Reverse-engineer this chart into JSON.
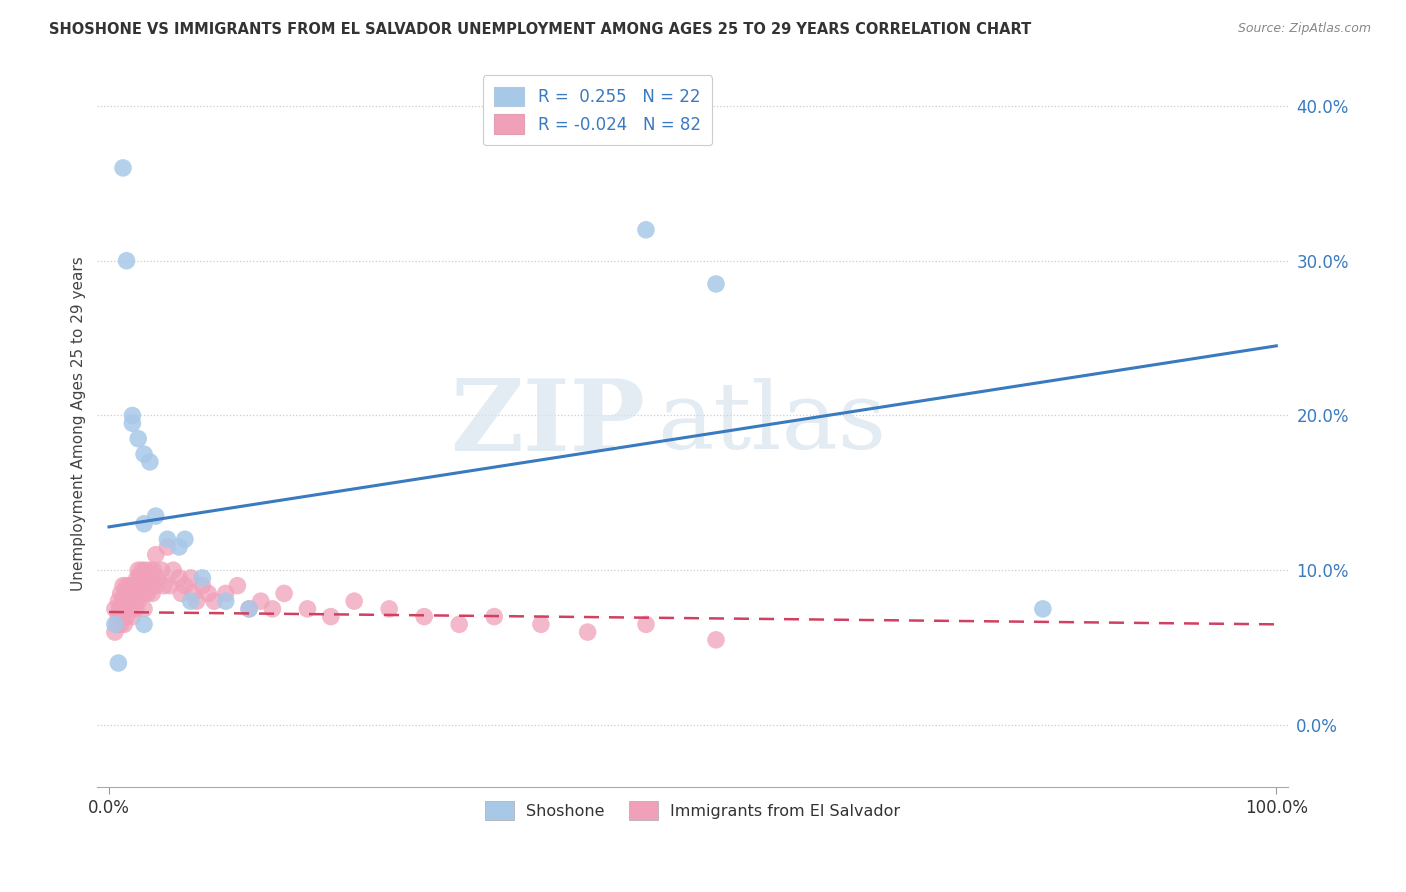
{
  "title": "SHOSHONE VS IMMIGRANTS FROM EL SALVADOR UNEMPLOYMENT AMONG AGES 25 TO 29 YEARS CORRELATION CHART",
  "source": "Source: ZipAtlas.com",
  "ylabel": "Unemployment Among Ages 25 to 29 years",
  "ytick_labels": [
    "0.0%",
    "10.0%",
    "20.0%",
    "30.0%",
    "40.0%"
  ],
  "ytick_values": [
    0.0,
    0.1,
    0.2,
    0.3,
    0.4
  ],
  "xlim": [
    -0.01,
    1.01
  ],
  "ylim": [
    -0.04,
    0.43
  ],
  "color_shoshone": "#a8c8e8",
  "color_salvador": "#f0a0b8",
  "color_line_shoshone": "#3a7abf",
  "color_line_salvador": "#d04060",
  "watermark_zip": "ZIP",
  "watermark_atlas": "atlas",
  "shoshone_x": [
    0.005,
    0.008,
    0.012,
    0.015,
    0.02,
    0.02,
    0.025,
    0.03,
    0.03,
    0.035,
    0.04,
    0.05,
    0.06,
    0.065,
    0.07,
    0.08,
    0.1,
    0.12,
    0.46,
    0.52,
    0.8,
    0.03
  ],
  "shoshone_y": [
    0.065,
    0.04,
    0.36,
    0.3,
    0.2,
    0.195,
    0.185,
    0.175,
    0.13,
    0.17,
    0.135,
    0.12,
    0.115,
    0.12,
    0.08,
    0.095,
    0.08,
    0.075,
    0.32,
    0.285,
    0.075,
    0.065
  ],
  "salvador_x": [
    0.005,
    0.005,
    0.007,
    0.008,
    0.008,
    0.009,
    0.01,
    0.01,
    0.01,
    0.012,
    0.012,
    0.013,
    0.013,
    0.014,
    0.015,
    0.015,
    0.015,
    0.016,
    0.017,
    0.018,
    0.018,
    0.019,
    0.02,
    0.02,
    0.02,
    0.021,
    0.022,
    0.023,
    0.023,
    0.024,
    0.025,
    0.025,
    0.025,
    0.026,
    0.027,
    0.028,
    0.028,
    0.03,
    0.03,
    0.03,
    0.031,
    0.032,
    0.033,
    0.035,
    0.035,
    0.036,
    0.037,
    0.038,
    0.04,
    0.04,
    0.042,
    0.045,
    0.047,
    0.05,
    0.052,
    0.055,
    0.06,
    0.062,
    0.065,
    0.07,
    0.072,
    0.075,
    0.08,
    0.085,
    0.09,
    0.1,
    0.11,
    0.12,
    0.13,
    0.14,
    0.15,
    0.17,
    0.19,
    0.21,
    0.24,
    0.27,
    0.3,
    0.33,
    0.37,
    0.41,
    0.46,
    0.52
  ],
  "salvador_y": [
    0.075,
    0.06,
    0.065,
    0.08,
    0.07,
    0.075,
    0.085,
    0.07,
    0.065,
    0.09,
    0.08,
    0.075,
    0.065,
    0.085,
    0.09,
    0.08,
    0.07,
    0.08,
    0.085,
    0.09,
    0.075,
    0.08,
    0.09,
    0.08,
    0.07,
    0.085,
    0.09,
    0.085,
    0.075,
    0.095,
    0.1,
    0.09,
    0.08,
    0.095,
    0.085,
    0.1,
    0.09,
    0.095,
    0.085,
    0.075,
    0.1,
    0.09,
    0.085,
    0.1,
    0.09,
    0.095,
    0.085,
    0.1,
    0.11,
    0.09,
    0.095,
    0.1,
    0.09,
    0.115,
    0.09,
    0.1,
    0.095,
    0.085,
    0.09,
    0.095,
    0.085,
    0.08,
    0.09,
    0.085,
    0.08,
    0.085,
    0.09,
    0.075,
    0.08,
    0.075,
    0.085,
    0.075,
    0.07,
    0.08,
    0.075,
    0.07,
    0.065,
    0.07,
    0.065,
    0.06,
    0.065,
    0.055
  ],
  "shoshone_line_x": [
    0.0,
    1.0
  ],
  "shoshone_line_y": [
    0.128,
    0.245
  ],
  "salvador_line_x": [
    0.0,
    1.0
  ],
  "salvador_line_y": [
    0.073,
    0.065
  ]
}
